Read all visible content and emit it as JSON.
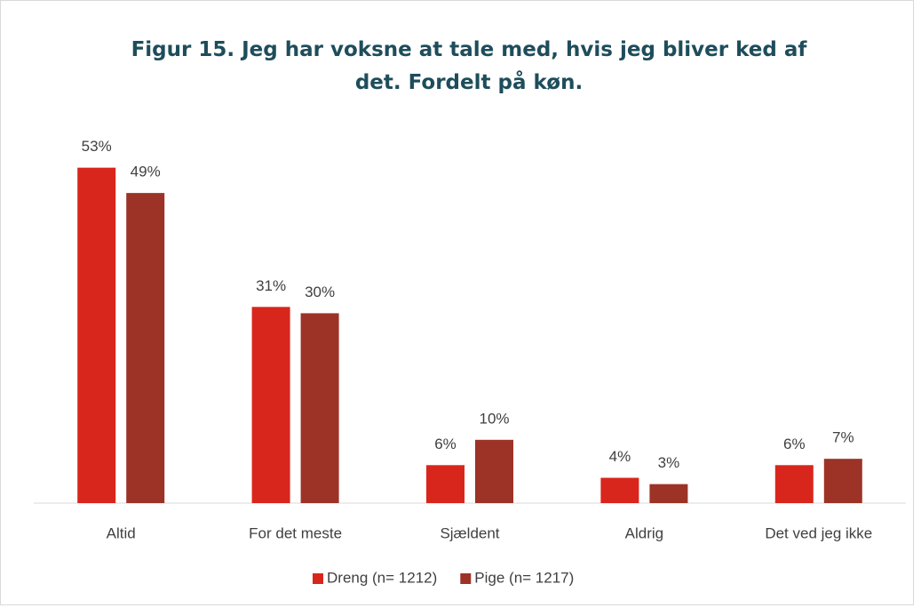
{
  "chart_data": {
    "type": "bar",
    "title": "Figur 15. Jeg har voksne at tale med, hvis jeg bliver ked af det. Fordelt på køn.",
    "categories": [
      "Altid",
      "For det meste",
      "Sjældent",
      "Aldrig",
      "Det ved jeg ikke"
    ],
    "series": [
      {
        "name": "Dreng (n= 1212)",
        "color": "#d9261c",
        "values": [
          53,
          31,
          6,
          4,
          6
        ],
        "value_labels": [
          "53%",
          "31%",
          "6%",
          "4%",
          "6%"
        ]
      },
      {
        "name": "Pige (n= 1217)",
        "color": "#9c3326",
        "values": [
          49,
          30,
          10,
          3,
          7
        ],
        "value_labels": [
          "49%",
          "30%",
          "10%",
          "3%",
          "7%"
        ]
      }
    ],
    "legend": "bottom"
  }
}
